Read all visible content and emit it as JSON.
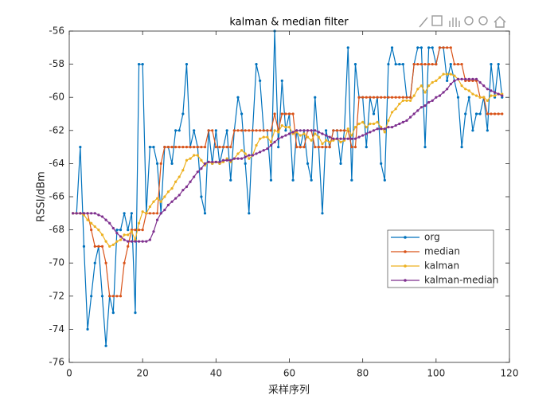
{
  "chart_data": {
    "type": "line",
    "title": "kalman & median filter",
    "x_label": "采样序列",
    "y_label": "RSSI/dBm",
    "xlim": [
      0,
      120
    ],
    "xticks": [
      0,
      20,
      40,
      60,
      80,
      100,
      120
    ],
    "ylim": [
      -76,
      -56
    ],
    "yticks": [
      -76,
      -74,
      -72,
      -70,
      -68,
      -66,
      -64,
      -62,
      -60,
      -58,
      -56
    ],
    "x": [
      1,
      2,
      3,
      4,
      5,
      6,
      7,
      8,
      9,
      10,
      11,
      12,
      13,
      14,
      15,
      16,
      17,
      18,
      19,
      20,
      21,
      22,
      23,
      24,
      25,
      26,
      27,
      28,
      29,
      30,
      31,
      32,
      33,
      34,
      35,
      36,
      37,
      38,
      39,
      40,
      41,
      42,
      43,
      44,
      45,
      46,
      47,
      48,
      49,
      50,
      51,
      52,
      53,
      54,
      55,
      56,
      57,
      58,
      59,
      60,
      61,
      62,
      63,
      64,
      65,
      66,
      67,
      68,
      69,
      70,
      71,
      72,
      73,
      74,
      75,
      76,
      77,
      78,
      79,
      80,
      81,
      82,
      83,
      84,
      85,
      86,
      87,
      88,
      89,
      90,
      91,
      92,
      93,
      94,
      95,
      96,
      97,
      98,
      99,
      100,
      101,
      102,
      103,
      104,
      105,
      106,
      107,
      108,
      109,
      110,
      111,
      112,
      113,
      114,
      115,
      116,
      117,
      118
    ],
    "series": [
      {
        "name": "org",
        "color": "#0072BD",
        "values": [
          -67,
          -67,
          -63,
          -69,
          -74,
          -72,
          -70,
          -69,
          -72,
          -75,
          -72,
          -73,
          -68,
          -68,
          -67,
          -68,
          -67,
          -73,
          -58,
          -58,
          -67,
          -63,
          -63,
          -64,
          -67,
          -63,
          -63,
          -64,
          -62,
          -62,
          -61,
          -58,
          -63,
          -62,
          -63,
          -66,
          -67,
          -62,
          -64,
          -62,
          -64,
          -63,
          -62,
          -65,
          -62,
          -60,
          -61,
          -64,
          -67,
          -62,
          -58,
          -59,
          -62,
          -62,
          -65,
          -56,
          -63,
          -59,
          -62,
          -61,
          -65,
          -62,
          -63,
          -62,
          -64,
          -65,
          -60,
          -63,
          -67,
          -62,
          -63,
          -62,
          -62,
          -64,
          -62,
          -57,
          -65,
          -58,
          -60,
          -60,
          -63,
          -60,
          -61,
          -60,
          -64,
          -65,
          -58,
          -57,
          -58,
          -58,
          -58,
          -60,
          -60,
          -58,
          -57,
          -57,
          -63,
          -57,
          -57,
          -58,
          -57,
          -57,
          -59,
          -58,
          -59,
          -60,
          -63,
          -61,
          -60,
          -62,
          -61,
          -61,
          -60,
          -62,
          -58,
          -60,
          -58,
          -60
        ]
      },
      {
        "name": "median",
        "color": "#D95319",
        "values": [
          -67,
          -67,
          -67,
          -67,
          -67,
          -68,
          -69,
          -69,
          -69,
          -70,
          -72,
          -72,
          -72,
          -72,
          -70,
          -69,
          -68,
          -68,
          -68,
          -68,
          -67,
          -67,
          -67,
          -67,
          -64,
          -63,
          -63,
          -63,
          -63,
          -63,
          -63,
          -63,
          -63,
          -63,
          -63,
          -63,
          -63,
          -62,
          -62,
          -63,
          -63,
          -63,
          -63,
          -63,
          -62,
          -62,
          -62,
          -62,
          -62,
          -62,
          -62,
          -62,
          -62,
          -62,
          -62,
          -61,
          -62,
          -61,
          -61,
          -61,
          -61,
          -63,
          -63,
          -63,
          -62,
          -62,
          -63,
          -63,
          -63,
          -63,
          -63,
          -62,
          -62,
          -62,
          -62,
          -62,
          -63,
          -63,
          -60,
          -60,
          -60,
          -60,
          -60,
          -60,
          -60,
          -60,
          -60,
          -60,
          -60,
          -60,
          -60,
          -60,
          -60,
          -58,
          -58,
          -58,
          -58,
          -58,
          -58,
          -58,
          -57,
          -57,
          -57,
          -57,
          -58,
          -58,
          -58,
          -59,
          -59,
          -59,
          -59,
          -60,
          -60,
          -61,
          -61,
          -61,
          -61,
          -61
        ]
      },
      {
        "name": "kalman",
        "color": "#EDB120",
        "values": [
          -67,
          -67,
          -67,
          -67.1,
          -67.4,
          -67.6,
          -67.8,
          -68,
          -68.3,
          -68.7,
          -69,
          -68.9,
          -68.7,
          -68.6,
          -68.3,
          -68.3,
          -68.1,
          -68.6,
          -67.6,
          -66.9,
          -67,
          -66.6,
          -66.3,
          -66.1,
          -66.3,
          -66,
          -65.7,
          -65.5,
          -65.1,
          -64.8,
          -64.4,
          -63.8,
          -63.7,
          -63.5,
          -63.5,
          -63.8,
          -64.1,
          -63.9,
          -64,
          -63.9,
          -64,
          -63.9,
          -63.7,
          -63.9,
          -63.7,
          -63.4,
          -63.2,
          -63.4,
          -63.7,
          -63.5,
          -62.9,
          -62.5,
          -62.4,
          -62.4,
          -62.7,
          -62,
          -62.1,
          -61.7,
          -61.8,
          -61.8,
          -62.2,
          -62.1,
          -62.3,
          -62.2,
          -62.4,
          -62.6,
          -62.2,
          -62.4,
          -62.8,
          -62.6,
          -62.7,
          -62.6,
          -62.5,
          -62.7,
          -62.6,
          -61.9,
          -62.3,
          -61.8,
          -61.6,
          -61.5,
          -61.8,
          -61.6,
          -61.6,
          -61.5,
          -61.8,
          -62.1,
          -61.4,
          -60.9,
          -60.7,
          -60.4,
          -60.2,
          -60.2,
          -60.2,
          -59.9,
          -59.5,
          -59.3,
          -59.7,
          -59.3,
          -59.1,
          -59,
          -58.8,
          -58.6,
          -58.6,
          -58.6,
          -58.7,
          -58.9,
          -59.3,
          -59.5,
          -59.6,
          -59.8,
          -59.9,
          -60,
          -60,
          -60.2,
          -59.9,
          -59.9,
          -59.8,
          -59.8
        ]
      },
      {
        "name": "kalman-median",
        "color": "#7E2F8E",
        "values": [
          -67,
          -67,
          -67,
          -67,
          -67,
          -67,
          -67,
          -67.1,
          -67.2,
          -67.4,
          -67.6,
          -67.9,
          -68.2,
          -68.4,
          -68.6,
          -68.7,
          -68.7,
          -68.7,
          -68.7,
          -68.7,
          -68.7,
          -68.6,
          -68.1,
          -67.4,
          -67,
          -66.8,
          -66.5,
          -66.3,
          -66.1,
          -65.9,
          -65.6,
          -65.4,
          -65.1,
          -64.8,
          -64.5,
          -64.3,
          -64,
          -63.9,
          -63.9,
          -63.9,
          -63.9,
          -63.8,
          -63.8,
          -63.8,
          -63.7,
          -63.7,
          -63.7,
          -63.6,
          -63.5,
          -63.5,
          -63.4,
          -63.3,
          -63.2,
          -63.1,
          -62.9,
          -62.7,
          -62.5,
          -62.4,
          -62.3,
          -62.2,
          -62.1,
          -62,
          -62,
          -62,
          -62,
          -62,
          -62,
          -62.1,
          -62.2,
          -62.3,
          -62.4,
          -62.5,
          -62.5,
          -62.5,
          -62.5,
          -62.5,
          -62.5,
          -62.5,
          -62.4,
          -62.3,
          -62.2,
          -62.1,
          -62,
          -61.9,
          -61.9,
          -61.9,
          -61.8,
          -61.8,
          -61.7,
          -61.6,
          -61.5,
          -61.4,
          -61.2,
          -61,
          -60.8,
          -60.6,
          -60.5,
          -60.3,
          -60.2,
          -60,
          -59.9,
          -59.7,
          -59.5,
          -59.2,
          -59,
          -58.9,
          -58.9,
          -58.9,
          -58.9,
          -58.9,
          -58.9,
          -59.1,
          -59.3,
          -59.5,
          -59.6,
          -59.7,
          -59.8,
          -59.9
        ]
      }
    ]
  }
}
